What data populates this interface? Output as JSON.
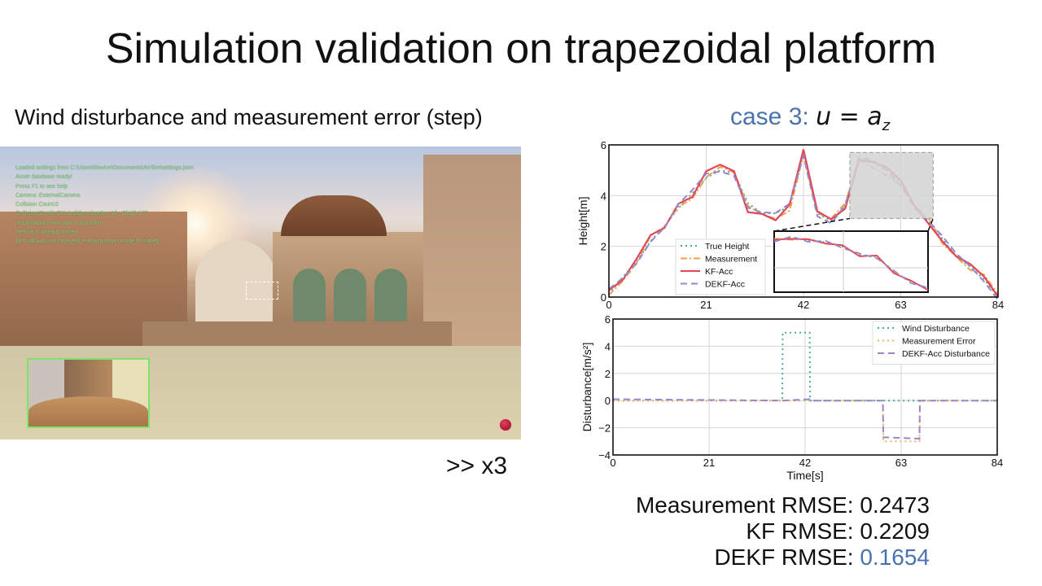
{
  "slide": {
    "title": "Simulation validation on trapezoidal platform",
    "subtitle": "Wind disturbance and measurement error (step)",
    "speed_label": ">> x3",
    "case_label": "case 3:",
    "case_formula": "u = a",
    "case_formula_sub": "z"
  },
  "video": {
    "log_lines": [
      "Loaded settings from C:\\Users\\Revive\\Documents\\AirSim\\settings.json",
      "Asset database ready!",
      "Press F1 to see help",
      "Camera: ExternalCamera",
      "Collision Count:0",
      "Collision#2 with SM_building_border_18 - ObjID 177",
      "requestApiControl was successful",
      "Vehicle is already armed",
      "API call was not received, entering hover mode for safety"
    ],
    "log_color": "#7fd07a",
    "pip_border_color": "#7de36a",
    "record_icon": "record-icon"
  },
  "rmse": {
    "measurement": {
      "label": "Measurement RMSE:",
      "value": "0.2473"
    },
    "kf": {
      "label": "KF RMSE:",
      "value": "0.2209"
    },
    "dekf": {
      "label": "DEKF RMSE:",
      "value": "0.1654"
    },
    "highlight_color": "#4a72b0"
  },
  "chart_data": [
    {
      "type": "line",
      "title": "",
      "xlabel": "",
      "ylabel": "Height[m]",
      "xlim": [
        0,
        84
      ],
      "ylim": [
        0,
        6
      ],
      "xticks": [
        0,
        21,
        42,
        63,
        84
      ],
      "yticks": [
        0,
        2,
        4,
        6
      ],
      "grid": true,
      "legend_position": "lower left (inside, near center)",
      "x": [
        0,
        3,
        6,
        9,
        12,
        15,
        18,
        21,
        24,
        27,
        30,
        33,
        36,
        39,
        42,
        45,
        48,
        51,
        54,
        57,
        60,
        63,
        66,
        69,
        72,
        75,
        78,
        81,
        84
      ],
      "series": [
        {
          "name": "True Height",
          "style": "dotted",
          "color": "#4aa9a0",
          "values": [
            0.1,
            0.8,
            1.4,
            2.2,
            2.8,
            3.5,
            4.1,
            4.7,
            5.0,
            4.9,
            3.7,
            3.3,
            3.3,
            3.6,
            5.6,
            3.3,
            3.0,
            3.6,
            5.4,
            5.3,
            5.0,
            4.5,
            3.6,
            3.0,
            2.3,
            1.6,
            1.2,
            0.7,
            0.0
          ]
        },
        {
          "name": "Measurement",
          "style": "dashdot",
          "color": "#f0a04a",
          "values": [
            0.2,
            0.7,
            1.3,
            2.3,
            2.7,
            3.6,
            4.0,
            4.8,
            5.1,
            4.8,
            3.5,
            3.3,
            3.2,
            3.5,
            5.6,
            3.2,
            3.0,
            3.7,
            5.5,
            5.2,
            4.8,
            4.3,
            3.5,
            3.1,
            2.2,
            1.7,
            1.1,
            0.8,
            0.0
          ]
        },
        {
          "name": "KF-Acc",
          "style": "solid",
          "color": "#e0485a",
          "values": [
            0.3,
            0.6,
            1.4,
            2.4,
            2.8,
            3.8,
            4.0,
            4.9,
            5.1,
            4.9,
            3.4,
            3.4,
            3.1,
            3.6,
            5.7,
            3.3,
            3.1,
            3.6,
            5.5,
            5.3,
            5.0,
            4.5,
            3.6,
            3.0,
            2.3,
            1.6,
            1.2,
            0.7,
            0.0
          ]
        },
        {
          "name": "DEKF-Acc",
          "style": "dashed",
          "color": "#9a86c8",
          "values": [
            0.2,
            0.7,
            1.4,
            2.3,
            2.8,
            3.6,
            4.1,
            4.8,
            5.0,
            4.9,
            3.6,
            3.3,
            3.2,
            3.6,
            5.6,
            3.3,
            3.0,
            3.6,
            5.4,
            5.3,
            5.0,
            4.5,
            3.6,
            3.0,
            2.3,
            1.6,
            1.2,
            0.7,
            0.0
          ]
        }
      ],
      "annotations": [
        "zoom-in inset of region t≈52–70s, height≈3.1–5.7m (gray dashed box) shown in lower-middle inset"
      ]
    },
    {
      "type": "line",
      "title": "",
      "xlabel": "Time[s]",
      "ylabel": "Disturbance[m/s^2]",
      "xlim": [
        0,
        84
      ],
      "ylim": [
        -4,
        6
      ],
      "xticks": [
        0,
        21,
        42,
        63,
        84
      ],
      "yticks": [
        -4,
        -2,
        0,
        2,
        4,
        6
      ],
      "grid": true,
      "legend_position": "upper right",
      "x": [
        0,
        37,
        37.1,
        43,
        43.1,
        59,
        59.1,
        67,
        67.1,
        84
      ],
      "series": [
        {
          "name": "Wind Disturbance",
          "style": "dotted",
          "color": "#4aa9a0",
          "values": [
            0,
            0,
            5,
            5,
            0,
            0,
            0,
            0,
            0,
            0
          ]
        },
        {
          "name": "Measurement Error",
          "style": "dotted",
          "color": "#f0b060",
          "values": [
            0,
            0,
            0,
            0,
            0,
            0,
            -3,
            -3,
            0,
            0
          ]
        },
        {
          "name": "DEKF-Acc Disturbance",
          "style": "dashed",
          "color": "#9a86c8",
          "values": [
            0.1,
            0,
            0,
            0.1,
            0,
            0,
            -2.7,
            -2.8,
            0,
            0
          ]
        }
      ]
    }
  ]
}
